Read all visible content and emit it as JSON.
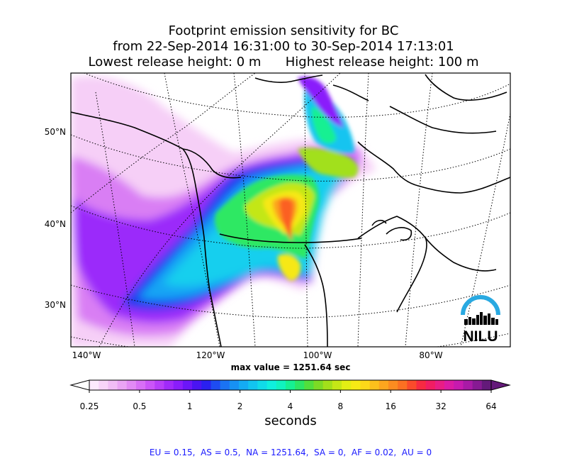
{
  "title": {
    "line1": "Footprint emission sensitivity for BC",
    "line2": "from 22-Sep-2014 16:31:00 to 30-Sep-2014 17:13:01",
    "line3": "Lowest release height: 0 m      Highest release height: 100 m"
  },
  "max_value_label": "max value = 1251.64 sec",
  "colorbar": {
    "unit_label": "seconds",
    "tick_labels": [
      "0.25",
      "0.5",
      "1",
      "2",
      "4",
      "8",
      "16",
      "32",
      "64"
    ],
    "colors": [
      "#fde9fd",
      "#f8d4f9",
      "#f1bdf6",
      "#eaa4f5",
      "#e28af5",
      "#d86ff6",
      "#cb55f8",
      "#b83ef9",
      "#a12afa",
      "#8a1dfb",
      "#6c16f8",
      "#4a14f2",
      "#2a20ef",
      "#1e4cf2",
      "#1a73f3",
      "#1791f4",
      "#14abf4",
      "#12c4f0",
      "#10dbe9",
      "#0ff0de",
      "#10f3bf",
      "#16f092",
      "#2ce664",
      "#52df3c",
      "#7cdb25",
      "#a2e01a",
      "#c5e716",
      "#e3ee14",
      "#f6ea15",
      "#fcd819",
      "#fdc01c",
      "#fda61e",
      "#fc8c20",
      "#fb7022",
      "#fa4b2b",
      "#f72a42",
      "#f11d63",
      "#e81d85",
      "#db1ba4",
      "#c71aaf",
      "#a91aa6",
      "#871a93",
      "#641a7a"
    ]
  },
  "logo": {
    "text": "NILU",
    "arc_color": "#29a9e1"
  },
  "footer": "EU = 0.15,  AS = 0.5,  NA = 1251.64,  SA = 0,  AF = 0.02,  AU = 0",
  "chart_data": {
    "type": "heatmap",
    "description_units": "seconds",
    "xlabel_ticks": [
      "140°W",
      "120°W",
      "100°W",
      "80°W"
    ],
    "ylabel_ticks": [
      "50°N",
      "40°N",
      "30°N"
    ],
    "scale": "log",
    "levels_seconds": [
      0.25,
      0.5,
      1,
      2,
      4,
      8,
      16,
      32,
      64
    ],
    "max_value_sec": 1251.64,
    "region_totals": {
      "EU": 0.15,
      "AS": 0.5,
      "NA": 1251.64,
      "SA": 0,
      "AF": 0.02,
      "AU": 0
    }
  }
}
